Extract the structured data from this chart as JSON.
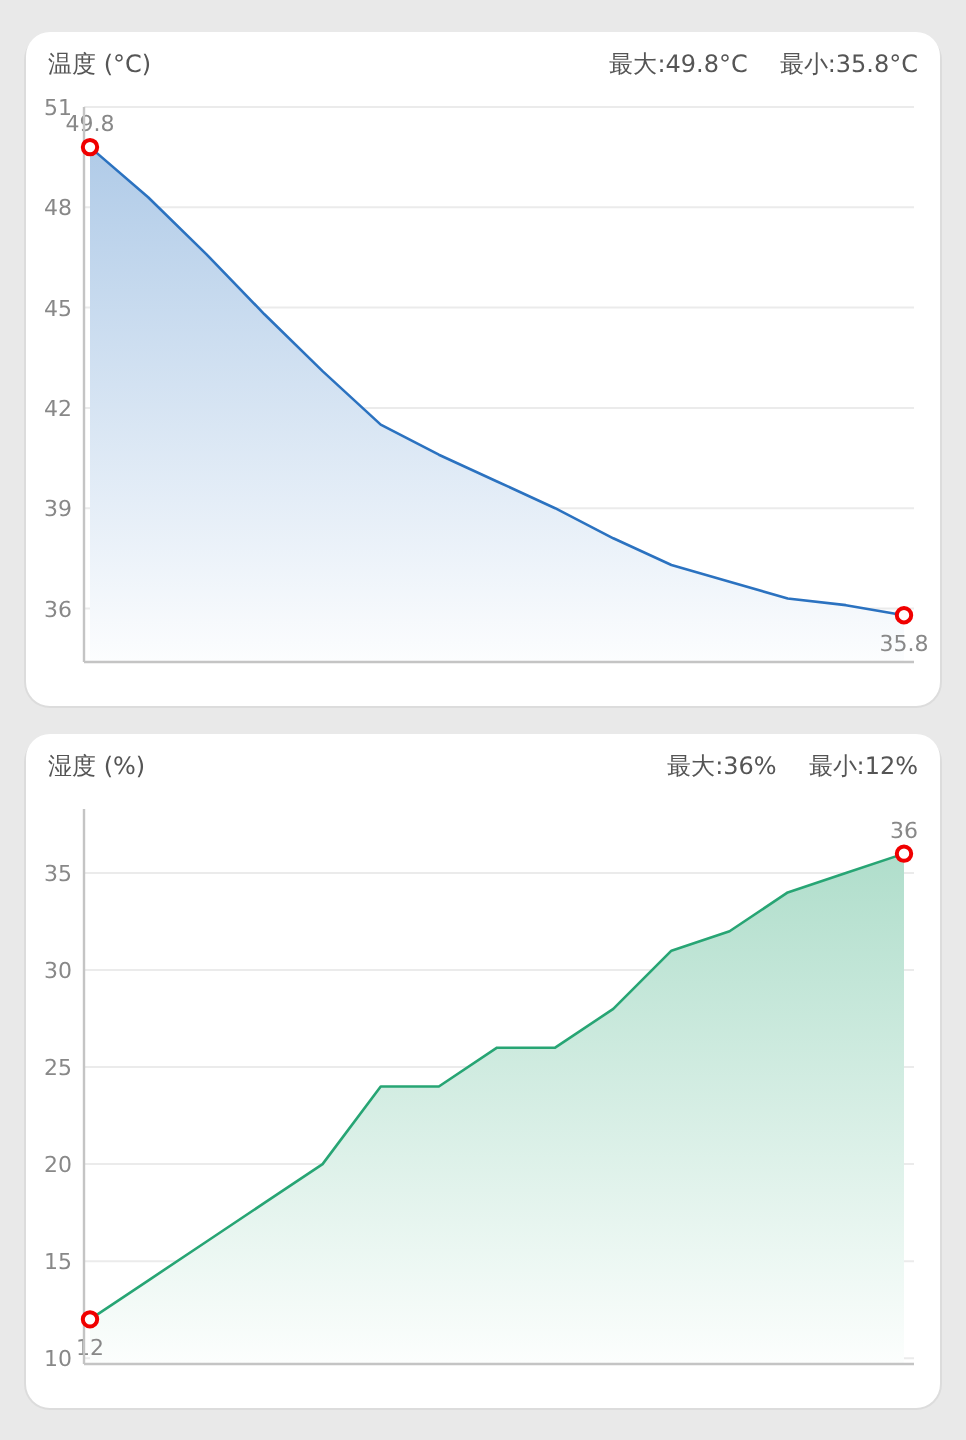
{
  "chart_data": [
    {
      "type": "area",
      "title": "温度 (°C)",
      "annotations": [
        "最大:49.8°C",
        "最小:35.8°C"
      ],
      "categories": [
        null,
        null,
        null,
        null,
        null,
        null,
        null,
        null,
        null,
        null,
        null,
        null,
        null,
        null,
        null
      ],
      "ylim": [
        34.4,
        51
      ],
      "yticks": [
        36,
        39,
        42,
        45,
        48,
        51
      ],
      "grid": "y",
      "tick_labels": "y",
      "series": [
        {
          "color": "#2b72c0",
          "values": [
            49.8,
            48.3,
            46.6,
            44.8,
            43.1,
            41.5,
            40.6,
            39.8,
            39.0,
            38.1,
            37.3,
            36.8,
            36.3,
            36.1,
            35.8
          ]
        },
        {
          "type": "scatter",
          "color": "#f00000",
          "marker": "circle",
          "values": [
            49.8,
            null,
            null,
            null,
            null,
            null,
            null,
            null,
            null,
            null,
            null,
            null,
            null,
            null,
            35.8
          ],
          "value_labels": [
            "49.8",
            null,
            null,
            null,
            null,
            null,
            null,
            null,
            null,
            null,
            null,
            null,
            null,
            null,
            "35.8"
          ]
        }
      ]
    },
    {
      "type": "area",
      "title": "湿度 (%)",
      "annotations": [
        "最大:36%",
        "最小:12%"
      ],
      "categories": [
        null,
        null,
        null,
        null,
        null,
        null,
        null,
        null,
        null,
        null,
        null,
        null,
        null,
        null,
        null
      ],
      "ylim": [
        9.7,
        38.3
      ],
      "yticks": [
        10,
        15,
        20,
        25,
        30,
        35
      ],
      "grid": "y",
      "tick_labels": "y",
      "series": [
        {
          "color": "#27a574",
          "values": [
            12,
            14,
            16,
            18,
            20,
            24,
            24,
            26,
            26,
            28,
            31,
            32,
            34,
            35,
            36
          ]
        },
        {
          "type": "scatter",
          "color": "#f00000",
          "marker": "circle",
          "values": [
            12,
            null,
            null,
            null,
            null,
            null,
            null,
            null,
            null,
            null,
            null,
            null,
            null,
            null,
            36
          ],
          "value_labels": [
            "12",
            null,
            null,
            null,
            null,
            null,
            null,
            null,
            null,
            null,
            null,
            null,
            null,
            null,
            "36"
          ]
        }
      ]
    }
  ]
}
